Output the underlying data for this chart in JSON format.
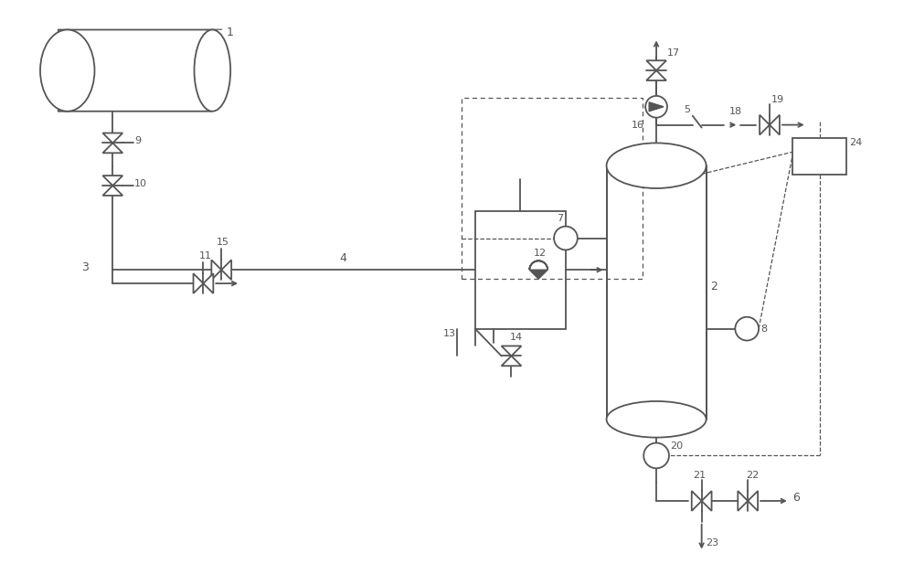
{
  "bg_color": "#ffffff",
  "line_color": "#555555",
  "lw": 1.3,
  "fig_width": 10.0,
  "fig_height": 6.4,
  "dpi": 100
}
